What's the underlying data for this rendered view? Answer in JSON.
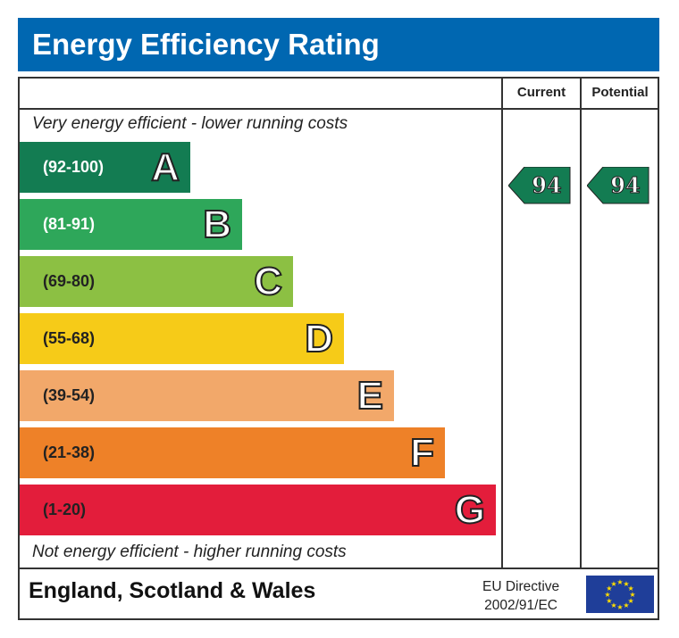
{
  "title": "Energy Efficiency Rating",
  "columns": {
    "current": "Current",
    "potential": "Potential"
  },
  "top_note": "Very energy efficient - lower running costs",
  "bottom_note": "Not energy efficient - higher running costs",
  "footer": {
    "region": "England, Scotland & Wales",
    "directive_line1": "EU Directive",
    "directive_line2": "2002/91/EC",
    "flag_icon": "eu-flag"
  },
  "chart_data": {
    "type": "bar",
    "bands": [
      {
        "letter": "A",
        "range": "(92-100)",
        "color": "#137c52",
        "text_color": "#ffffff"
      },
      {
        "letter": "B",
        "range": "(81-91)",
        "color": "#2ea75a",
        "text_color": "#ffffff"
      },
      {
        "letter": "C",
        "range": "(69-80)",
        "color": "#8cc043",
        "text_color": "#222222"
      },
      {
        "letter": "D",
        "range": "(55-68)",
        "color": "#f6cb18",
        "text_color": "#222222"
      },
      {
        "letter": "E",
        "range": "(39-54)",
        "color": "#f2a86a",
        "text_color": "#222222"
      },
      {
        "letter": "F",
        "range": "(21-38)",
        "color": "#ee8128",
        "text_color": "#222222"
      },
      {
        "letter": "G",
        "range": "(1-20)",
        "color": "#e31d3b",
        "text_color": "#222222"
      }
    ],
    "current": {
      "value": "94",
      "band": "A",
      "color": "#137c52"
    },
    "potential": {
      "value": "94",
      "band": "A",
      "color": "#137c52"
    }
  }
}
